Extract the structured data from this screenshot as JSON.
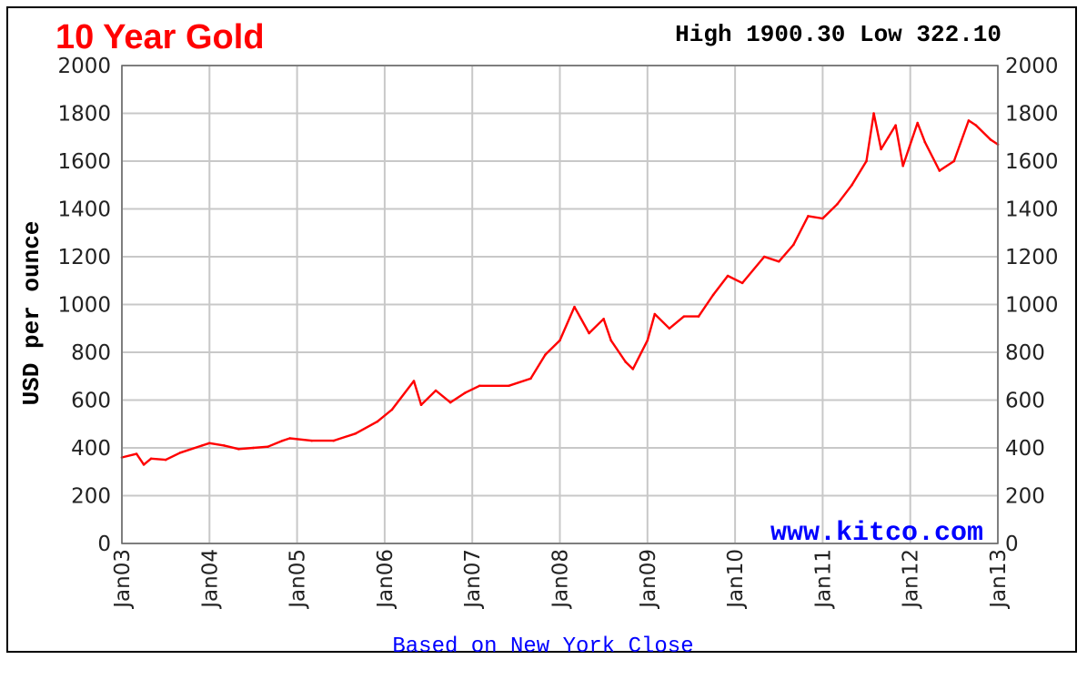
{
  "chart_data": {
    "type": "line",
    "title": "10 Year Gold",
    "high_low": "High 1900.30 Low 322.10",
    "ylabel": "USD per ounce",
    "watermark": "www.kitco.com",
    "footnote": "Based on New York Close",
    "ylim": [
      0,
      2000
    ],
    "y_ticks": [
      0,
      200,
      400,
      600,
      800,
      1000,
      1200,
      1400,
      1600,
      1800,
      2000
    ],
    "x_ticks": [
      "Jan03",
      "Jan04",
      "Jan05",
      "Jan06",
      "Jan07",
      "Jan08",
      "Jan09",
      "Jan10",
      "Jan11",
      "Jan12",
      "Jan13"
    ],
    "grid": true,
    "line_color": "#ff0000",
    "series": [
      {
        "x": [
          "2003-01",
          "2003-03",
          "2003-04",
          "2003-05",
          "2003-07",
          "2003-09",
          "2003-12",
          "2004-01",
          "2004-03",
          "2004-05",
          "2004-07",
          "2004-09",
          "2004-11",
          "2004-12",
          "2005-03",
          "2005-06",
          "2005-09",
          "2005-12",
          "2006-02",
          "2006-05",
          "2006-06",
          "2006-08",
          "2006-10",
          "2006-12",
          "2007-02",
          "2007-06",
          "2007-09",
          "2007-11",
          "2008-01",
          "2008-03",
          "2008-05",
          "2008-07",
          "2008-08",
          "2008-10",
          "2008-11",
          "2009-01",
          "2009-02",
          "2009-04",
          "2009-06",
          "2009-08",
          "2009-10",
          "2009-12",
          "2010-02",
          "2010-05",
          "2010-07",
          "2010-09",
          "2010-11",
          "2011-01",
          "2011-03",
          "2011-05",
          "2011-07",
          "2011-08",
          "2011-09",
          "2011-10",
          "2011-11",
          "2011-12",
          "2012-02",
          "2012-03",
          "2012-05",
          "2012-07",
          "2012-09",
          "2012-10",
          "2012-12",
          "2013-01"
        ],
        "values": [
          360,
          375,
          330,
          355,
          350,
          380,
          410,
          420,
          410,
          395,
          400,
          405,
          430,
          440,
          430,
          430,
          460,
          510,
          560,
          680,
          580,
          640,
          590,
          630,
          660,
          660,
          690,
          790,
          850,
          990,
          880,
          940,
          850,
          760,
          730,
          850,
          960,
          900,
          950,
          950,
          1040,
          1120,
          1090,
          1200,
          1180,
          1250,
          1370,
          1360,
          1420,
          1500,
          1600,
          1800,
          1650,
          1700,
          1750,
          1580,
          1760,
          1680,
          1560,
          1600,
          1770,
          1750,
          1690,
          1670
        ]
      }
    ]
  }
}
